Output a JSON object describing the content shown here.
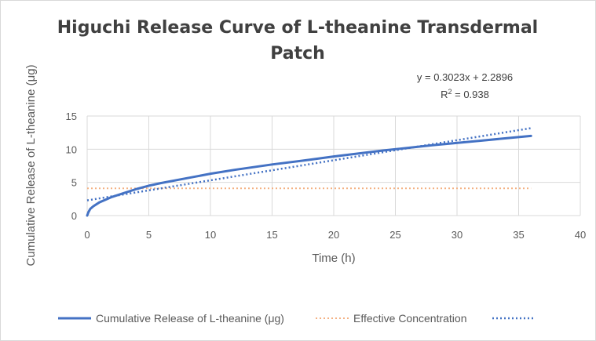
{
  "chart_data": {
    "type": "line",
    "title_line1": "Higuchi Release Curve of L-theanine Transdermal",
    "title_line2": "Patch",
    "xlabel": "Time (h)",
    "ylabel": "Cumulative Release of L-theanine (μg)",
    "xlim": [
      0,
      40
    ],
    "ylim": [
      0,
      15
    ],
    "x_ticks": [
      0,
      5,
      10,
      15,
      20,
      25,
      30,
      35,
      40
    ],
    "y_ticks": [
      0,
      5,
      10,
      15
    ],
    "grid": "vertical and horizontal major gridlines",
    "legend_position": "bottom",
    "series": [
      {
        "name": "Cumulative Release of L-theanine (μg)",
        "style": "solid",
        "color": "#4472c4",
        "x": [
          0,
          0.1,
          0.25,
          0.5,
          1,
          2,
          3,
          4,
          5,
          6,
          8,
          10,
          12,
          15,
          18,
          20,
          24,
          28,
          32,
          36
        ],
        "y": [
          0,
          0.5,
          1.0,
          1.4,
          2.0,
          2.8,
          3.4,
          4.0,
          4.5,
          4.9,
          5.6,
          6.3,
          6.9,
          7.7,
          8.4,
          8.9,
          9.8,
          10.6,
          11.3,
          12.0
        ]
      },
      {
        "name": "Effective Concentration",
        "style": "dotted",
        "color": "#f4b183",
        "x": [
          0,
          36
        ],
        "y": [
          4.1,
          4.1
        ]
      }
    ],
    "trendline": {
      "style": "dotted",
      "color": "#4472c4",
      "slope": 0.3023,
      "intercept": 2.2896,
      "x_range": [
        0,
        36
      ],
      "equation": "y = 0.3023x + 2.2896",
      "r_squared_label": "R",
      "r_squared_sup": "2",
      "r_squared_value": " = 0.938"
    }
  }
}
